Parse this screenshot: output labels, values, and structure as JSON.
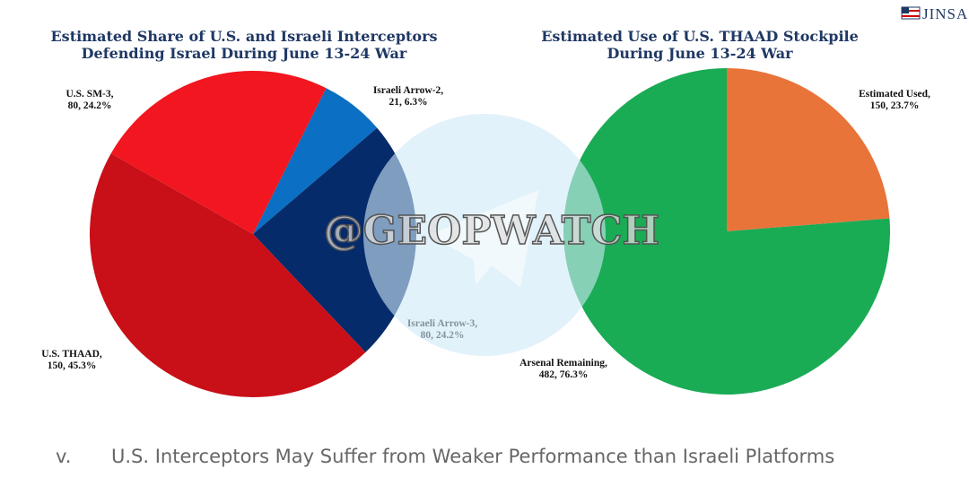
{
  "logo": "JINSA",
  "watermark": "@GEOPWATCH",
  "caption": {
    "marker": "v.",
    "text": "U.S. Interceptors May Suffer from Weaker Performance than Israeli Platforms"
  },
  "chart_data": [
    {
      "type": "pie",
      "title": [
        "Estimated Share of U.S. and Israeli Interceptors",
        "Defending Israel During June 13-24 War"
      ],
      "categories": [
        "Israeli Arrow-2,",
        "Israeli Arrow-3,",
        "U.S. THAAD,",
        "U.S. SM-3,"
      ],
      "values": [
        21,
        80,
        150,
        80
      ],
      "value_labels": [
        "21, 6.3%",
        "80, 24.2%",
        "150, 45.3%",
        "80, 24.2%"
      ],
      "colors": [
        "#0b6fc3",
        "#062b6b",
        "#c90f17",
        "#f1161f"
      ]
    },
    {
      "type": "pie",
      "title": [
        "Estimated Use of U.S. THAAD Stockpile",
        "During June 13-24 War"
      ],
      "categories": [
        "Estimated Used,",
        "Arsenal Remaining,"
      ],
      "values": [
        150,
        482
      ],
      "value_labels": [
        "150, 23.7%",
        "482, 76.3%"
      ],
      "colors": [
        "#e8743a",
        "#1aab55"
      ]
    }
  ]
}
